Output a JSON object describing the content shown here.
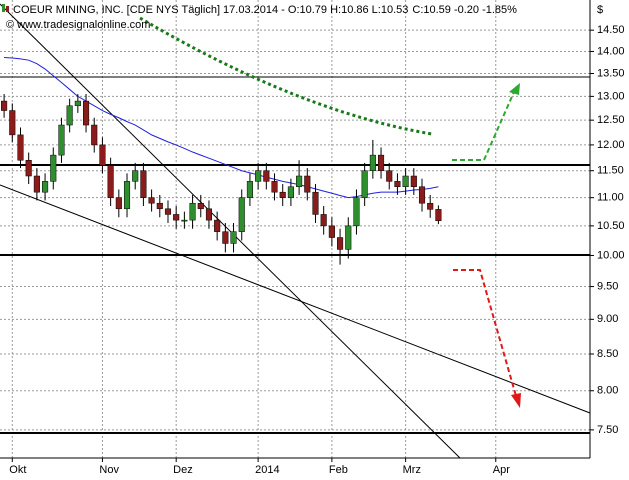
{
  "chart_data": {
    "type": "candlestick",
    "title": "COEUR MINING, INC. [CDE NYS  Täglich] 17.03.2014 - O:10.79 H:10.86 L:10.53",
    "quote": "C:10.59 -0.20 -1.85%",
    "watermark": "© www.tradesignalonline.com",
    "y_axis_label": "$",
    "log_y": true,
    "grid": true,
    "up_color": "#2f8f2f",
    "down_color": "#8b1c1c",
    "quote_color": "#d01010",
    "categories": [
      null,
      "Okt",
      null,
      null,
      null,
      null,
      null,
      null,
      null,
      null,
      null,
      null,
      "Nov",
      null,
      null,
      null,
      null,
      null,
      null,
      null,
      null,
      "Dez",
      null,
      null,
      null,
      null,
      null,
      null,
      null,
      null,
      null,
      "2014",
      null,
      null,
      null,
      null,
      null,
      null,
      null,
      null,
      "Feb",
      null,
      null,
      null,
      null,
      null,
      null,
      null,
      null,
      "Mrz",
      null,
      null,
      null,
      null,
      null,
      null,
      null,
      null,
      null,
      null,
      "Apr",
      null,
      null,
      null,
      null,
      null,
      null,
      null,
      null,
      null,
      null,
      null
    ],
    "open": [
      12.9,
      12.7,
      12.2,
      11.7,
      11.4,
      11.1,
      11.3,
      11.8,
      12.4,
      12.8,
      12.9,
      12.4,
      12.0,
      11.6,
      11.0,
      10.8,
      11.3,
      11.5,
      11.0,
      10.9,
      10.8,
      10.7,
      10.6,
      10.6,
      10.9,
      10.8,
      10.6,
      10.4,
      10.2,
      10.4,
      11.0,
      11.3,
      11.5,
      11.3,
      11.1,
      11.0,
      11.2,
      11.4,
      11.1,
      10.7,
      10.5,
      10.3,
      10.1,
      10.5,
      11.0,
      11.5,
      11.8,
      11.5,
      11.3,
      11.2,
      11.4,
      11.2,
      10.9,
      10.79,
      null,
      null,
      null,
      null,
      null,
      null,
      null,
      null,
      null,
      null,
      null,
      null,
      null,
      null,
      null,
      null,
      null,
      null
    ],
    "high": [
      13.05,
      12.85,
      12.35,
      11.85,
      11.55,
      11.45,
      11.95,
      12.55,
      12.95,
      13.05,
      13.05,
      12.55,
      12.15,
      11.75,
      11.15,
      11.45,
      11.65,
      11.65,
      11.15,
      11.05,
      10.95,
      10.85,
      10.75,
      11.05,
      11.05,
      10.95,
      10.75,
      10.55,
      10.55,
      11.15,
      11.45,
      11.65,
      11.65,
      11.45,
      11.25,
      11.35,
      11.7,
      11.55,
      11.25,
      10.85,
      10.65,
      10.45,
      10.65,
      11.15,
      11.65,
      12.1,
      11.95,
      11.65,
      11.45,
      11.55,
      11.55,
      11.35,
      11.05,
      10.86,
      null,
      null,
      null,
      null,
      null,
      null,
      null,
      null,
      null,
      null,
      null,
      null,
      null,
      null,
      null,
      null,
      null,
      null
    ],
    "low": [
      12.55,
      12.05,
      11.55,
      11.25,
      10.95,
      10.95,
      11.15,
      11.65,
      12.25,
      12.65,
      12.25,
      11.85,
      11.45,
      10.85,
      10.65,
      10.65,
      11.15,
      10.85,
      10.75,
      10.65,
      10.55,
      10.45,
      10.45,
      10.45,
      10.65,
      10.45,
      10.25,
      10.05,
      10.05,
      10.25,
      10.85,
      11.15,
      11.15,
      10.95,
      10.85,
      10.85,
      11.05,
      10.95,
      10.55,
      10.35,
      10.15,
      9.85,
      9.95,
      10.35,
      10.85,
      11.35,
      11.35,
      11.15,
      11.05,
      11.05,
      11.05,
      10.75,
      10.64,
      10.53,
      null,
      null,
      null,
      null,
      null,
      null,
      null,
      null,
      null,
      null,
      null,
      null,
      null,
      null,
      null,
      null,
      null,
      null
    ],
    "close": [
      12.7,
      12.2,
      11.7,
      11.4,
      11.1,
      11.3,
      11.8,
      12.4,
      12.8,
      12.9,
      12.4,
      12.0,
      11.6,
      11.0,
      10.8,
      11.3,
      11.5,
      11.0,
      10.9,
      10.8,
      10.7,
      10.6,
      10.6,
      10.9,
      10.8,
      10.6,
      10.4,
      10.2,
      10.4,
      11.0,
      11.3,
      11.5,
      11.3,
      11.1,
      11.0,
      11.2,
      11.4,
      11.1,
      10.7,
      10.5,
      10.3,
      10.1,
      10.5,
      11.0,
      11.5,
      11.8,
      11.5,
      11.3,
      11.2,
      11.4,
      11.2,
      10.9,
      10.79,
      10.59,
      null,
      null,
      null,
      null,
      null,
      null,
      null,
      null,
      null,
      null,
      null,
      null,
      null,
      null,
      null,
      null,
      null,
      null
    ],
    "overlays": [
      {
        "color": "#2020e0",
        "values": [
          13.86,
          13.85,
          13.83,
          13.8,
          13.72,
          13.6,
          13.45,
          13.3,
          13.15,
          13.0,
          12.9,
          12.8,
          12.7,
          12.62,
          12.55,
          12.47,
          12.4,
          12.3,
          12.2,
          12.13,
          12.06,
          12.0,
          11.93,
          11.86,
          11.8,
          11.74,
          11.68,
          11.62,
          11.56,
          11.5,
          11.46,
          11.42,
          11.38,
          11.34,
          11.3,
          11.27,
          11.24,
          11.2,
          11.16,
          11.12,
          11.08,
          11.04,
          11.0,
          11.02,
          11.05,
          11.08,
          11.1,
          11.1,
          11.1,
          11.12,
          11.14,
          11.15,
          11.17,
          11.2,
          null,
          null,
          null,
          null,
          null,
          null,
          null,
          null,
          null,
          null,
          null,
          null,
          null,
          null,
          null,
          null,
          null,
          null
        ]
      }
    ],
    "ylim": [
      7.16,
      15.24
    ],
    "yticks": [
      {
        "value": 7.5,
        "label": "7.50"
      },
      {
        "value": 8,
        "label": "8.00"
      },
      {
        "value": 8.5,
        "label": "8.50"
      },
      {
        "value": 9,
        "label": "9.00"
      },
      {
        "value": 9.5,
        "label": "9.50"
      },
      {
        "value": 10,
        "label": "10.00"
      },
      {
        "value": 10.5,
        "label": "10.50"
      },
      {
        "value": 11,
        "label": "11.00"
      },
      {
        "value": 11.5,
        "label": "11.50"
      },
      {
        "value": 12,
        "label": "12.00"
      },
      {
        "value": 12.5,
        "label": "12.50"
      },
      {
        "value": 13,
        "label": "13.00"
      },
      {
        "value": 13.5,
        "label": "13.50"
      },
      {
        "value": 14,
        "label": "14.00"
      },
      {
        "value": 14.5,
        "label": "14.50"
      }
    ]
  }
}
